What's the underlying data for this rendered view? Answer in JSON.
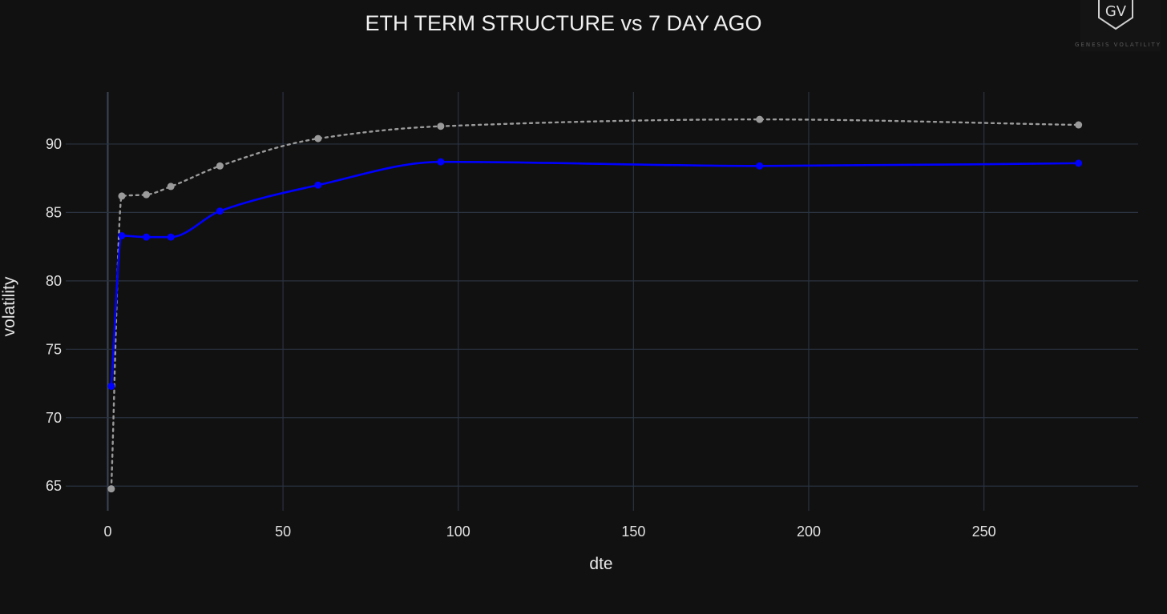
{
  "chart_data": {
    "type": "line",
    "title": "ETH TERM STRUCTURE vs 7 DAY AGO",
    "xlabel": "dte",
    "ylabel": "volatility",
    "xlim": [
      -12,
      294
    ],
    "ylim": [
      63.2,
      93.8
    ],
    "x_ticks": [
      0,
      50,
      100,
      150,
      200,
      250
    ],
    "y_ticks": [
      65,
      70,
      75,
      80,
      85,
      90
    ],
    "grid": true,
    "series": [
      {
        "style": "dotted",
        "color": "#9a9a9a",
        "x": [
          1,
          4,
          11,
          18,
          32,
          60,
          95,
          186,
          277
        ],
        "y": [
          64.8,
          86.2,
          86.3,
          86.9,
          88.4,
          90.4,
          91.3,
          91.8,
          91.4
        ]
      },
      {
        "style": "solid",
        "color": "#0000ff",
        "x": [
          1,
          4,
          11,
          18,
          32,
          60,
          95,
          186,
          277
        ],
        "y": [
          72.3,
          83.3,
          83.2,
          83.2,
          85.1,
          87.0,
          88.7,
          88.4,
          88.6
        ]
      }
    ]
  },
  "logo": {
    "mark": "GV",
    "text": "GENESIS VOLATILITY"
  }
}
